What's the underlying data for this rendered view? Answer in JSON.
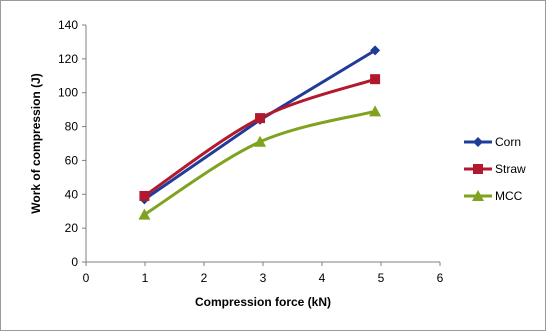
{
  "chart_data": {
    "type": "line",
    "title": "",
    "xlabel": "Compression force (kN)",
    "ylabel": "Work of compression (J)",
    "xlim": [
      0,
      6
    ],
    "ylim": [
      0,
      140
    ],
    "xticks": [
      0,
      1,
      2,
      3,
      4,
      5,
      6
    ],
    "yticks": [
      0,
      20,
      40,
      60,
      80,
      100,
      120,
      140
    ],
    "grid": false,
    "legend_position": "right",
    "series": [
      {
        "name": "Corn",
        "color": "#1f3c99",
        "marker": "diamond",
        "smooth": false,
        "x": [
          0.99,
          2.95,
          4.9
        ],
        "y": [
          37,
          84,
          125
        ]
      },
      {
        "name": "Straw",
        "color": "#b3192d",
        "marker": "square",
        "smooth": true,
        "x": [
          0.99,
          2.95,
          4.9
        ],
        "y": [
          39,
          85,
          108
        ]
      },
      {
        "name": "MCC",
        "color": "#7fa31f",
        "marker": "triangle",
        "smooth": true,
        "x": [
          0.99,
          2.95,
          4.9
        ],
        "y": [
          28,
          71,
          89
        ]
      }
    ]
  }
}
